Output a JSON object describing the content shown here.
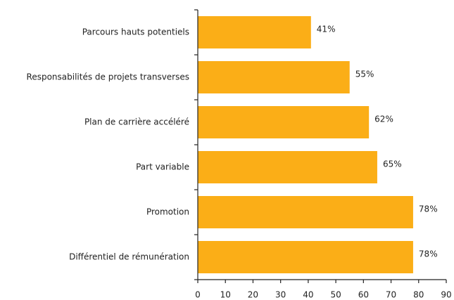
{
  "chart_data": {
    "type": "bar",
    "orientation": "horizontal",
    "categories": [
      "Parcours hauts potentiels",
      "Responsabilités de projets transverses",
      "Plan de carrière accéléré",
      "Part variable",
      "Promotion",
      "Différentiel de rémunération"
    ],
    "values": [
      41,
      55,
      62,
      65,
      78,
      78
    ],
    "value_labels": [
      "41%",
      "55%",
      "62%",
      "65%",
      "78%",
      "78%"
    ],
    "color": "#fbae17",
    "xlim": [
      0,
      90
    ],
    "xticks": [
      0,
      10,
      20,
      30,
      40,
      50,
      60,
      70,
      80,
      90
    ]
  }
}
